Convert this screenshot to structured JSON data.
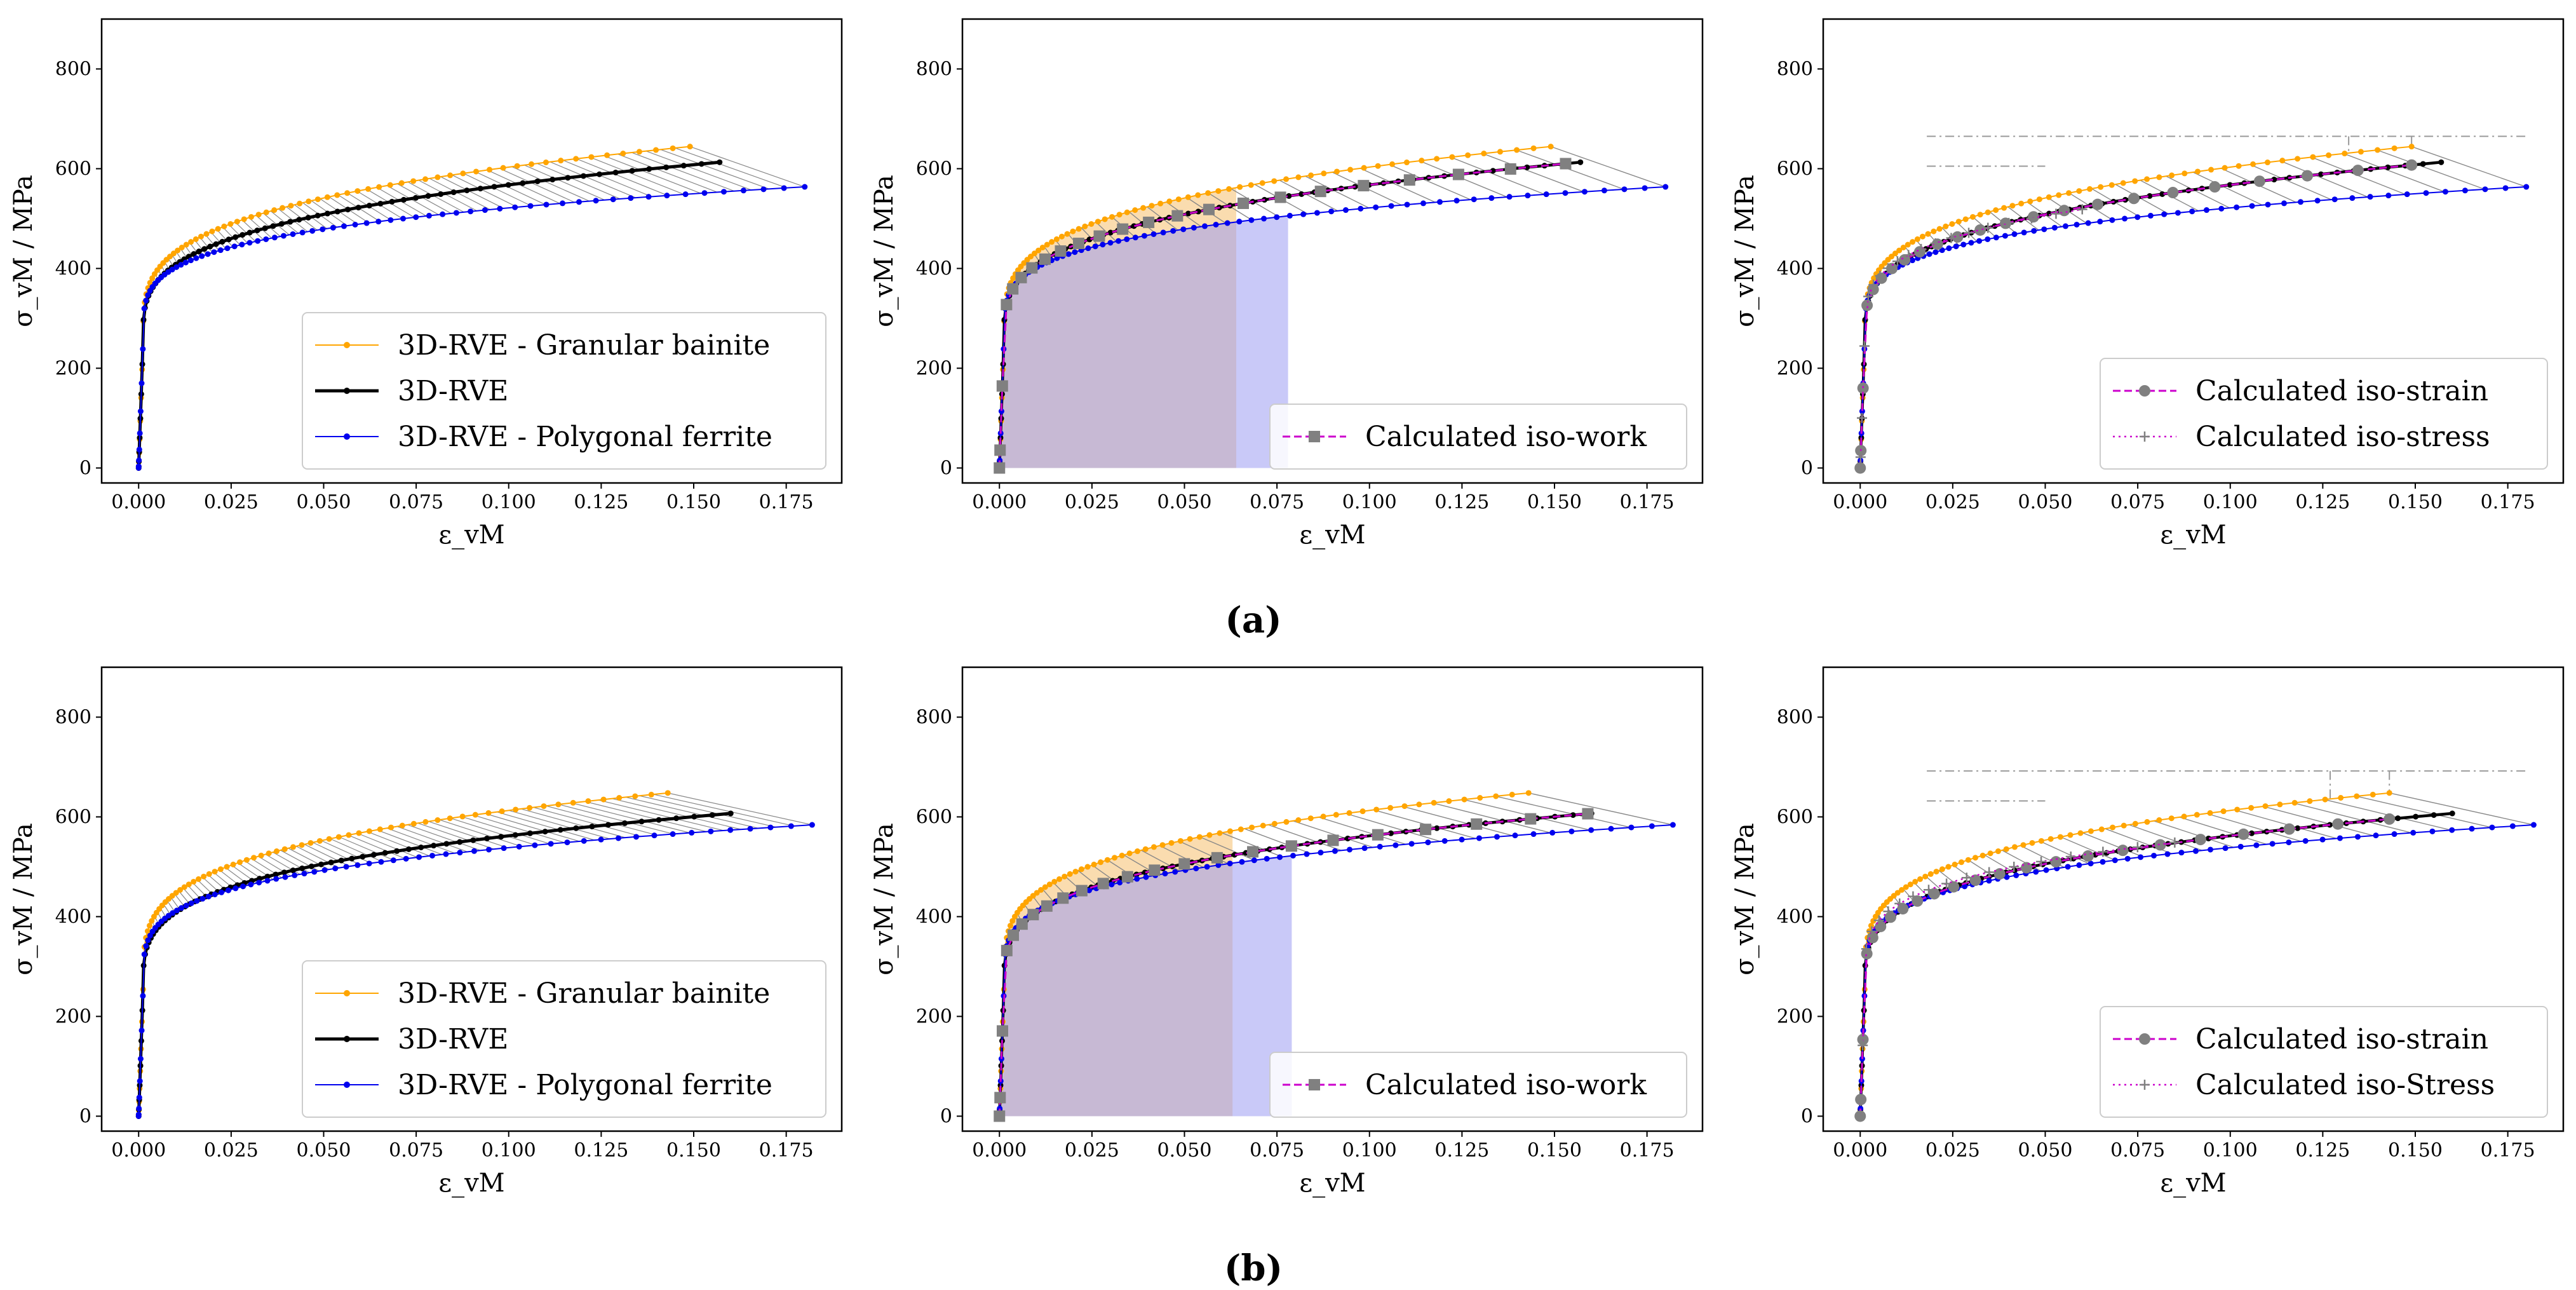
{
  "figure": {
    "rows": [
      {
        "caption": "(a)"
      },
      {
        "caption": "(b)"
      }
    ]
  },
  "colors": {
    "bainite": "#FFA500",
    "rve": "#000000",
    "ferrite": "#0000EE",
    "calc": "#CC00CC",
    "calc_marker": "#808080",
    "area_bainite": "#F5C06E",
    "area_ferrite": "#9C9CF2",
    "guide": "#999999",
    "tie": "#888888"
  },
  "chart_data": [
    {
      "id": "a1",
      "type": "line",
      "row": 0,
      "col": 0,
      "xlabel": "ε_vM",
      "ylabel": "σ_vM / MPa",
      "xlim": [
        -0.01,
        0.19
      ],
      "ylim": [
        -30,
        900
      ],
      "xticks": [
        "0.000",
        "0.025",
        "0.050",
        "0.075",
        "0.100",
        "0.125",
        "0.150",
        "0.175"
      ],
      "yticks": [
        "0",
        "200",
        "400",
        "600",
        "800"
      ],
      "legend_position": "bottom-right",
      "series": [
        {
          "name": "3D-RVE - Granular bainite",
          "key": "bainite",
          "sigma0": 258,
          "A": 660,
          "m": 0.28,
          "xmax": 0.149
        },
        {
          "name": "3D-RVE",
          "key": "rve",
          "sigma0": 258,
          "A": 620,
          "m": 0.3,
          "xmax": 0.157
        },
        {
          "name": "3D-RVE - Polygonal ferrite",
          "key": "ferrite",
          "sigma0": 258,
          "A": 470,
          "m": 0.25,
          "xmax": 0.18
        }
      ],
      "legend": [
        "3D-RVE - Granular bainite",
        "3D-RVE",
        "3D-RVE - Polygonal ferrite"
      ]
    },
    {
      "id": "a2",
      "type": "line",
      "row": 0,
      "col": 1,
      "xlabel": "ε_vM",
      "ylabel": "σ_vM / MPa",
      "xlim": [
        -0.01,
        0.19
      ],
      "ylim": [
        -30,
        900
      ],
      "xticks": [
        "0.000",
        "0.025",
        "0.050",
        "0.075",
        "0.100",
        "0.125",
        "0.150",
        "0.175"
      ],
      "yticks": [
        "0",
        "200",
        "400",
        "600",
        "800"
      ],
      "legend_position": "bottom-right",
      "shaded_regions": [
        {
          "series": "bainite",
          "x_end": 0.064
        },
        {
          "series": "ferrite",
          "x_end": 0.078
        }
      ],
      "series": [
        {
          "name": "3D-RVE - Granular bainite",
          "key": "bainite",
          "sigma0": 258,
          "A": 660,
          "m": 0.28,
          "xmax": 0.149
        },
        {
          "name": "3D-RVE",
          "key": "rve",
          "sigma0": 258,
          "A": 620,
          "m": 0.3,
          "xmax": 0.157
        },
        {
          "name": "3D-RVE - Polygonal ferrite",
          "key": "ferrite",
          "sigma0": 258,
          "A": 470,
          "m": 0.25,
          "xmax": 0.18
        },
        {
          "name": "Calculated iso-work",
          "key": "calc",
          "sigma0": 258,
          "A": 620,
          "m": 0.3,
          "xmax": 0.153
        }
      ],
      "legend": [
        "Calculated iso-work"
      ]
    },
    {
      "id": "a3",
      "type": "line",
      "row": 0,
      "col": 2,
      "xlabel": "ε_vM",
      "ylabel": "σ_vM / MPa",
      "xlim": [
        -0.01,
        0.19
      ],
      "ylim": [
        -30,
        900
      ],
      "xticks": [
        "0.000",
        "0.025",
        "0.050",
        "0.075",
        "0.100",
        "0.125",
        "0.150",
        "0.175"
      ],
      "yticks": [
        "0",
        "200",
        "400",
        "600",
        "800"
      ],
      "legend_position": "bottom-right",
      "iso_stress_level": 665,
      "iso_strain_x": [
        0.132,
        0.149
      ],
      "series": [
        {
          "name": "3D-RVE - Granular bainite",
          "key": "bainite",
          "sigma0": 258,
          "A": 660,
          "m": 0.28,
          "xmax": 0.149
        },
        {
          "name": "3D-RVE",
          "key": "rve",
          "sigma0": 258,
          "A": 620,
          "m": 0.3,
          "xmax": 0.157
        },
        {
          "name": "3D-RVE - Polygonal ferrite",
          "key": "ferrite",
          "sigma0": 258,
          "A": 470,
          "m": 0.25,
          "xmax": 0.18
        },
        {
          "name": "Calculated iso-strain",
          "key": "calc",
          "sigma0": 258,
          "A": 620,
          "m": 0.3,
          "xmax": 0.149
        },
        {
          "name": "Calculated iso-stress",
          "key": "calc_stress",
          "sigma0": 258,
          "A": 560,
          "m": 0.27,
          "xmax": 0.06
        }
      ],
      "legend": [
        "Calculated iso-strain",
        "Calculated iso-stress"
      ]
    },
    {
      "id": "b1",
      "type": "line",
      "row": 1,
      "col": 0,
      "xlabel": "ε_vM",
      "ylabel": "σ_vM / MPa",
      "xlim": [
        -0.01,
        0.19
      ],
      "ylim": [
        -30,
        900
      ],
      "xticks": [
        "0.000",
        "0.025",
        "0.050",
        "0.075",
        "0.100",
        "0.125",
        "0.150",
        "0.175"
      ],
      "yticks": [
        "0",
        "200",
        "400",
        "600",
        "800"
      ],
      "legend_position": "bottom-right",
      "series": [
        {
          "name": "3D-RVE - Granular bainite",
          "key": "bainite",
          "sigma0": 258,
          "A": 648,
          "m": 0.26,
          "xmax": 0.143
        },
        {
          "name": "3D-RVE",
          "key": "rve",
          "sigma0": 258,
          "A": 595,
          "m": 0.29,
          "xmax": 0.16
        },
        {
          "name": "3D-RVE - Polygonal ferrite",
          "key": "ferrite",
          "sigma0": 258,
          "A": 500,
          "m": 0.25,
          "xmax": 0.182
        }
      ],
      "legend": [
        "3D-RVE - Granular bainite",
        "3D-RVE",
        "3D-RVE - Polygonal ferrite"
      ]
    },
    {
      "id": "b2",
      "type": "line",
      "row": 1,
      "col": 1,
      "xlabel": "ε_vM",
      "ylabel": "σ_vM / MPa",
      "xlim": [
        -0.01,
        0.19
      ],
      "ylim": [
        -30,
        900
      ],
      "xticks": [
        "0.000",
        "0.025",
        "0.050",
        "0.075",
        "0.100",
        "0.125",
        "0.150",
        "0.175"
      ],
      "yticks": [
        "0",
        "200",
        "400",
        "600",
        "800"
      ],
      "legend_position": "bottom-right",
      "shaded_regions": [
        {
          "series": "bainite",
          "x_end": 0.063
        },
        {
          "series": "ferrite",
          "x_end": 0.079
        }
      ],
      "series": [
        {
          "name": "3D-RVE - Granular bainite",
          "key": "bainite",
          "sigma0": 258,
          "A": 648,
          "m": 0.26,
          "xmax": 0.143
        },
        {
          "name": "3D-RVE",
          "key": "rve",
          "sigma0": 258,
          "A": 595,
          "m": 0.29,
          "xmax": 0.16
        },
        {
          "name": "3D-RVE - Polygonal ferrite",
          "key": "ferrite",
          "sigma0": 258,
          "A": 500,
          "m": 0.25,
          "xmax": 0.182
        },
        {
          "name": "Calculated iso-work",
          "key": "calc",
          "sigma0": 258,
          "A": 595,
          "m": 0.29,
          "xmax": 0.159
        }
      ],
      "legend": [
        "Calculated iso-work"
      ]
    },
    {
      "id": "b3",
      "type": "line",
      "row": 1,
      "col": 2,
      "xlabel": "ε_vM",
      "ylabel": "σ_vM / MPa",
      "xlim": [
        -0.01,
        0.19
      ],
      "ylim": [
        -30,
        900
      ],
      "xticks": [
        "0.000",
        "0.025",
        "0.050",
        "0.075",
        "0.100",
        "0.125",
        "0.150",
        "0.175"
      ],
      "yticks": [
        "0",
        "200",
        "400",
        "600",
        "800"
      ],
      "legend_position": "bottom-right",
      "iso_stress_level": 692,
      "iso_strain_x": [
        0.127,
        0.143
      ],
      "series": [
        {
          "name": "3D-RVE - Granular bainite",
          "key": "bainite",
          "sigma0": 258,
          "A": 648,
          "m": 0.26,
          "xmax": 0.143
        },
        {
          "name": "3D-RVE",
          "key": "rve",
          "sigma0": 258,
          "A": 595,
          "m": 0.29,
          "xmax": 0.16
        },
        {
          "name": "3D-RVE - Polygonal ferrite",
          "key": "ferrite",
          "sigma0": 258,
          "A": 500,
          "m": 0.25,
          "xmax": 0.182
        },
        {
          "name": "Calculated iso-strain",
          "key": "calc",
          "sigma0": 258,
          "A": 595,
          "m": 0.29,
          "xmax": 0.143
        },
        {
          "name": "Calculated iso-Stress",
          "key": "calc_stress",
          "sigma0": 258,
          "A": 540,
          "m": 0.25,
          "xmax": 0.085
        }
      ],
      "legend": [
        "Calculated iso-strain",
        "Calculated iso-Stress"
      ]
    }
  ]
}
